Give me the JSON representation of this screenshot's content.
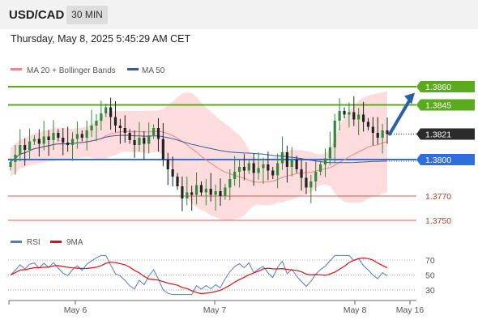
{
  "header": {
    "pair": "USD/CAD",
    "timeframe": "30 MIN"
  },
  "datetime": "Thursday, May 8, 2025 5:45:29 AM CET",
  "colors": {
    "resistance": "#5aaa1e",
    "support": "#2e6fdc",
    "target": "#e05555",
    "ma20": "#ee8888",
    "ma50": "#3a5a9a",
    "bollinger": "#fcd6d6",
    "rsi": "#5577cc",
    "rsi_ma": "#dd1111",
    "arrow": "#2a5fa8"
  },
  "chart_data": [
    {
      "type": "candlestick",
      "legend": [
        "MA 20 + Bollinger Bands",
        "MA 50"
      ],
      "legend_position": "top-left",
      "x_ticks": [
        "May 6",
        "May 7",
        "May 8",
        "May 16"
      ],
      "ylim": [
        1.3738,
        1.387
      ],
      "current_price": 1.3821,
      "levels": [
        {
          "value": 1.386,
          "label": "1.3860",
          "kind": "resistance"
        },
        {
          "value": 1.3845,
          "label": "1.3845",
          "kind": "resistance"
        },
        {
          "value": 1.38,
          "label": "1.3800",
          "kind": "support"
        },
        {
          "value": 1.377,
          "label": "1.3770",
          "kind": "target"
        },
        {
          "value": 1.375,
          "label": "1.3750",
          "kind": "target"
        }
      ],
      "closes": [
        1.3798,
        1.3804,
        1.3812,
        1.3808,
        1.3815,
        1.3817,
        1.3813,
        1.3819,
        1.3816,
        1.3822,
        1.3818,
        1.3814,
        1.3812,
        1.3817,
        1.3821,
        1.3818,
        1.3824,
        1.3828,
        1.3832,
        1.3838,
        1.3843,
        1.3835,
        1.3828,
        1.3826,
        1.3822,
        1.3816,
        1.3812,
        1.3818,
        1.3813,
        1.382,
        1.3826,
        1.3817,
        1.38,
        1.3792,
        1.3786,
        1.3778,
        1.3768,
        1.3773,
        1.3771,
        1.3779,
        1.3773,
        1.3776,
        1.3771,
        1.3774,
        1.377,
        1.3777,
        1.3784,
        1.379,
        1.3794,
        1.3791,
        1.3797,
        1.3789,
        1.3793,
        1.3796,
        1.3791,
        1.3787,
        1.3797,
        1.3806,
        1.3794,
        1.38,
        1.3792,
        1.3785,
        1.3777,
        1.3782,
        1.379,
        1.3796,
        1.3801,
        1.381,
        1.3832,
        1.384,
        1.3837,
        1.3839,
        1.3833,
        1.3837,
        1.3831,
        1.3827,
        1.3822,
        1.3818,
        1.3824,
        1.3821
      ]
    },
    {
      "type": "line",
      "legend": [
        "RSI",
        "9MA"
      ],
      "y_ticks": [
        70,
        50,
        30
      ],
      "ylim": [
        20,
        80
      ]
    }
  ]
}
